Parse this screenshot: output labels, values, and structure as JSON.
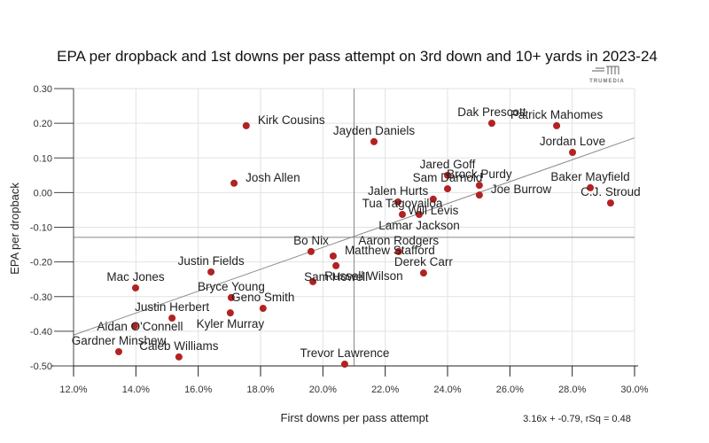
{
  "chart_data": {
    "type": "scatter",
    "title": "EPA per dropback and 1st downs per pass attempt on 3rd down and 10+ yards in 2023-24",
    "xlabel": "First downs per pass attempt",
    "ylabel": "EPA per dropback",
    "xlim": [
      0.12,
      0.3
    ],
    "ylim": [
      -0.5,
      0.3
    ],
    "x_ticks": [
      0.12,
      0.14,
      0.16,
      0.18,
      0.2,
      0.22,
      0.24,
      0.26,
      0.28,
      0.3
    ],
    "x_tick_labels": [
      "12.0%",
      "14.0%",
      "16.0%",
      "18.0%",
      "20.0%",
      "22.0%",
      "24.0%",
      "26.0%",
      "28.0%",
      "30.0%"
    ],
    "y_ticks": [
      0.3,
      0.2,
      0.1,
      0.0,
      -0.1,
      -0.2,
      -0.3,
      -0.4,
      -0.5
    ],
    "y_tick_labels": [
      "0.30",
      "0.20",
      "0.10",
      "0.00",
      "-0.10",
      "-0.20",
      "-0.30",
      "-0.40",
      "-0.50"
    ],
    "grid": true,
    "reference_lines": {
      "x_mean": 0.21,
      "y_mean": -0.129
    },
    "regression": {
      "slope": 3.16,
      "intercept": -0.79,
      "label": "3.16x + -0.79, rSq = 0.48"
    },
    "point_color": "#b22222",
    "points": [
      {
        "name": "Kirk Cousins",
        "x": 0.1754,
        "y": 0.193,
        "label_pos": "right"
      },
      {
        "name": "Josh Allen",
        "x": 0.1715,
        "y": 0.027,
        "label_pos": "right"
      },
      {
        "name": "Jayden Daniels",
        "x": 0.2164,
        "y": 0.147,
        "label_pos": "above"
      },
      {
        "name": "Dak Prescott",
        "x": 0.2542,
        "y": 0.2,
        "label_pos": "above"
      },
      {
        "name": "Patrick Mahomes",
        "x": 0.275,
        "y": 0.193,
        "label_pos": "above"
      },
      {
        "name": "Jordan Love",
        "x": 0.2801,
        "y": 0.116,
        "label_pos": "above"
      },
      {
        "name": "Jared Goff",
        "x": 0.24,
        "y": 0.05,
        "label_pos": "above"
      },
      {
        "name": "Sam Darnold",
        "x": 0.24,
        "y": 0.011,
        "label_pos": "above"
      },
      {
        "name": "Brock Purdy",
        "x": 0.2502,
        "y": 0.021,
        "label_pos": "above"
      },
      {
        "name": "Joe Burrow",
        "x": 0.2502,
        "y": -0.007,
        "label_pos": "right"
      },
      {
        "name": "Baker Mayfield",
        "x": 0.2858,
        "y": 0.014,
        "label_pos": "above"
      },
      {
        "name": "C.J. Stroud",
        "x": 0.2923,
        "y": -0.03,
        "label_pos": "above"
      },
      {
        "name": "Jalen Hurts",
        "x": 0.2241,
        "y": -0.027,
        "label_pos": "above"
      },
      {
        "name": "Will Levis",
        "x": 0.2354,
        "y": -0.019,
        "label_pos": "below"
      },
      {
        "name": "Tua Tagovailoa",
        "x": 0.2255,
        "y": -0.063,
        "label_pos": "above"
      },
      {
        "name": "Lamar Jackson",
        "x": 0.2309,
        "y": -0.063,
        "label_pos": "below"
      },
      {
        "name": "Bo Nix",
        "x": 0.1962,
        "y": -0.17,
        "label_pos": "above"
      },
      {
        "name": "Matthew Stafford",
        "x": 0.2033,
        "y": -0.183,
        "label_pos": "right"
      },
      {
        "name": "Sam Howell",
        "x": 0.2042,
        "y": -0.211,
        "label_pos": "below"
      },
      {
        "name": "Russell Wilson",
        "x": 0.1968,
        "y": -0.257,
        "label_pos": "right"
      },
      {
        "name": "Aaron Rodgers",
        "x": 0.2243,
        "y": -0.17,
        "label_pos": "above"
      },
      {
        "name": "Derek Carr",
        "x": 0.2323,
        "y": -0.232,
        "label_pos": "above"
      },
      {
        "name": "Justin Fields",
        "x": 0.1641,
        "y": -0.229,
        "label_pos": "above"
      },
      {
        "name": "Mac Jones",
        "x": 0.1399,
        "y": -0.275,
        "label_pos": "above"
      },
      {
        "name": "Bryce Young",
        "x": 0.1706,
        "y": -0.303,
        "label_pos": "above"
      },
      {
        "name": "Geno Smith",
        "x": 0.1808,
        "y": -0.334,
        "label_pos": "above"
      },
      {
        "name": "Justin Herbert",
        "x": 0.1516,
        "y": -0.362,
        "label_pos": "above"
      },
      {
        "name": "Kyler Murray",
        "x": 0.1703,
        "y": -0.347,
        "label_pos": "below"
      },
      {
        "name": "Aidan O'Connell",
        "x": 0.1396,
        "y": -0.385,
        "label_pos": "left"
      },
      {
        "name": "Gardner Minshew",
        "x": 0.1345,
        "y": -0.459,
        "label_pos": "above"
      },
      {
        "name": "Caleb Williams",
        "x": 0.1538,
        "y": -0.474,
        "label_pos": "above"
      },
      {
        "name": "Trevor Lawrence",
        "x": 0.207,
        "y": -0.495,
        "label_pos": "above"
      }
    ]
  },
  "branding": {
    "logo_text": "TRUMEDIA",
    "logo_icon": "trumedia-logo-icon"
  }
}
